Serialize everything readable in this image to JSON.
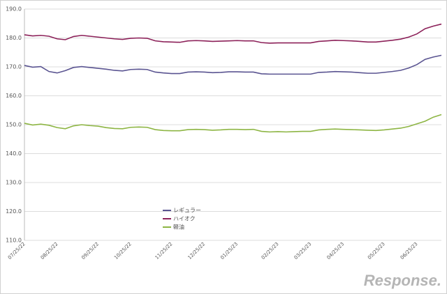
{
  "chart_data": {
    "type": "line",
    "categories": [
      "07/25/22",
      null,
      null,
      null,
      "08/25/22",
      null,
      null,
      null,
      null,
      "09/25/22",
      null,
      null,
      null,
      "10/25/22",
      null,
      null,
      null,
      null,
      "11/25/22",
      null,
      null,
      null,
      "12/25/22",
      null,
      null,
      null,
      "01/25/23",
      null,
      null,
      null,
      null,
      "02/25/23",
      null,
      null,
      null,
      "03/25/23",
      null,
      null,
      null,
      "04/25/23",
      null,
      null,
      null,
      null,
      "05/25/23",
      null,
      null,
      null,
      "06/25/23",
      null,
      null,
      null
    ],
    "series": [
      {
        "name": "レギュラー",
        "color": "#5a5491",
        "values": [
          170.5,
          169.9,
          170.1,
          168.4,
          167.9,
          168.7,
          169.8,
          170.1,
          169.8,
          169.5,
          169.2,
          168.8,
          168.6,
          169.1,
          169.2,
          169.1,
          168.2,
          167.9,
          167.7,
          167.7,
          168.2,
          168.3,
          168.2,
          168.0,
          168.1,
          168.3,
          168.3,
          168.2,
          168.2,
          167.6,
          167.5,
          167.5,
          167.5,
          167.5,
          167.5,
          167.5,
          168.1,
          168.2,
          168.4,
          168.3,
          168.2,
          168.0,
          167.8,
          167.8,
          168.1,
          168.4,
          168.8,
          169.6,
          170.8,
          172.6,
          173.4,
          174.0
        ]
      },
      {
        "name": "ハイオク",
        "color": "#8c2159",
        "values": [
          181.1,
          180.7,
          180.9,
          180.6,
          179.7,
          179.4,
          180.5,
          180.9,
          180.6,
          180.3,
          180.0,
          179.7,
          179.5,
          179.9,
          180.0,
          179.9,
          179.0,
          178.7,
          178.6,
          178.5,
          179.0,
          179.1,
          179.0,
          178.8,
          178.9,
          179.0,
          179.1,
          179.0,
          179.0,
          178.4,
          178.2,
          178.3,
          178.3,
          178.3,
          178.3,
          178.3,
          178.8,
          179.0,
          179.2,
          179.1,
          179.0,
          178.8,
          178.6,
          178.6,
          178.9,
          179.2,
          179.6,
          180.3,
          181.4,
          183.2,
          184.1,
          184.8
        ]
      },
      {
        "name": "軽油",
        "color": "#8db543",
        "values": [
          150.5,
          149.9,
          150.2,
          149.8,
          149.0,
          148.6,
          149.6,
          150.0,
          149.7,
          149.5,
          149.0,
          148.7,
          148.6,
          149.1,
          149.2,
          149.1,
          148.3,
          148.0,
          147.9,
          147.9,
          148.3,
          148.4,
          148.3,
          148.1,
          148.2,
          148.4,
          148.4,
          148.3,
          148.4,
          147.7,
          147.5,
          147.6,
          147.5,
          147.6,
          147.7,
          147.7,
          148.2,
          148.4,
          148.5,
          148.4,
          148.3,
          148.2,
          148.1,
          148.0,
          148.2,
          148.5,
          148.8,
          149.4,
          150.3,
          151.2,
          152.6,
          153.5
        ]
      }
    ],
    "ylim": [
      110,
      190
    ],
    "yticks": [
      {
        "value": 110,
        "label": "110.0"
      },
      {
        "value": 120,
        "label": "120.0"
      },
      {
        "value": 130,
        "label": "130.0"
      },
      {
        "value": 140,
        "label": "140.0"
      },
      {
        "value": 150,
        "label": "150.0"
      },
      {
        "value": 160,
        "label": "160.0"
      },
      {
        "value": 170,
        "label": "170.0"
      },
      {
        "value": 180,
        "label": "180.0"
      },
      {
        "value": 190,
        "label": "190.0"
      }
    ],
    "grid": true,
    "legend": "lower-center",
    "watermark": "Response."
  }
}
